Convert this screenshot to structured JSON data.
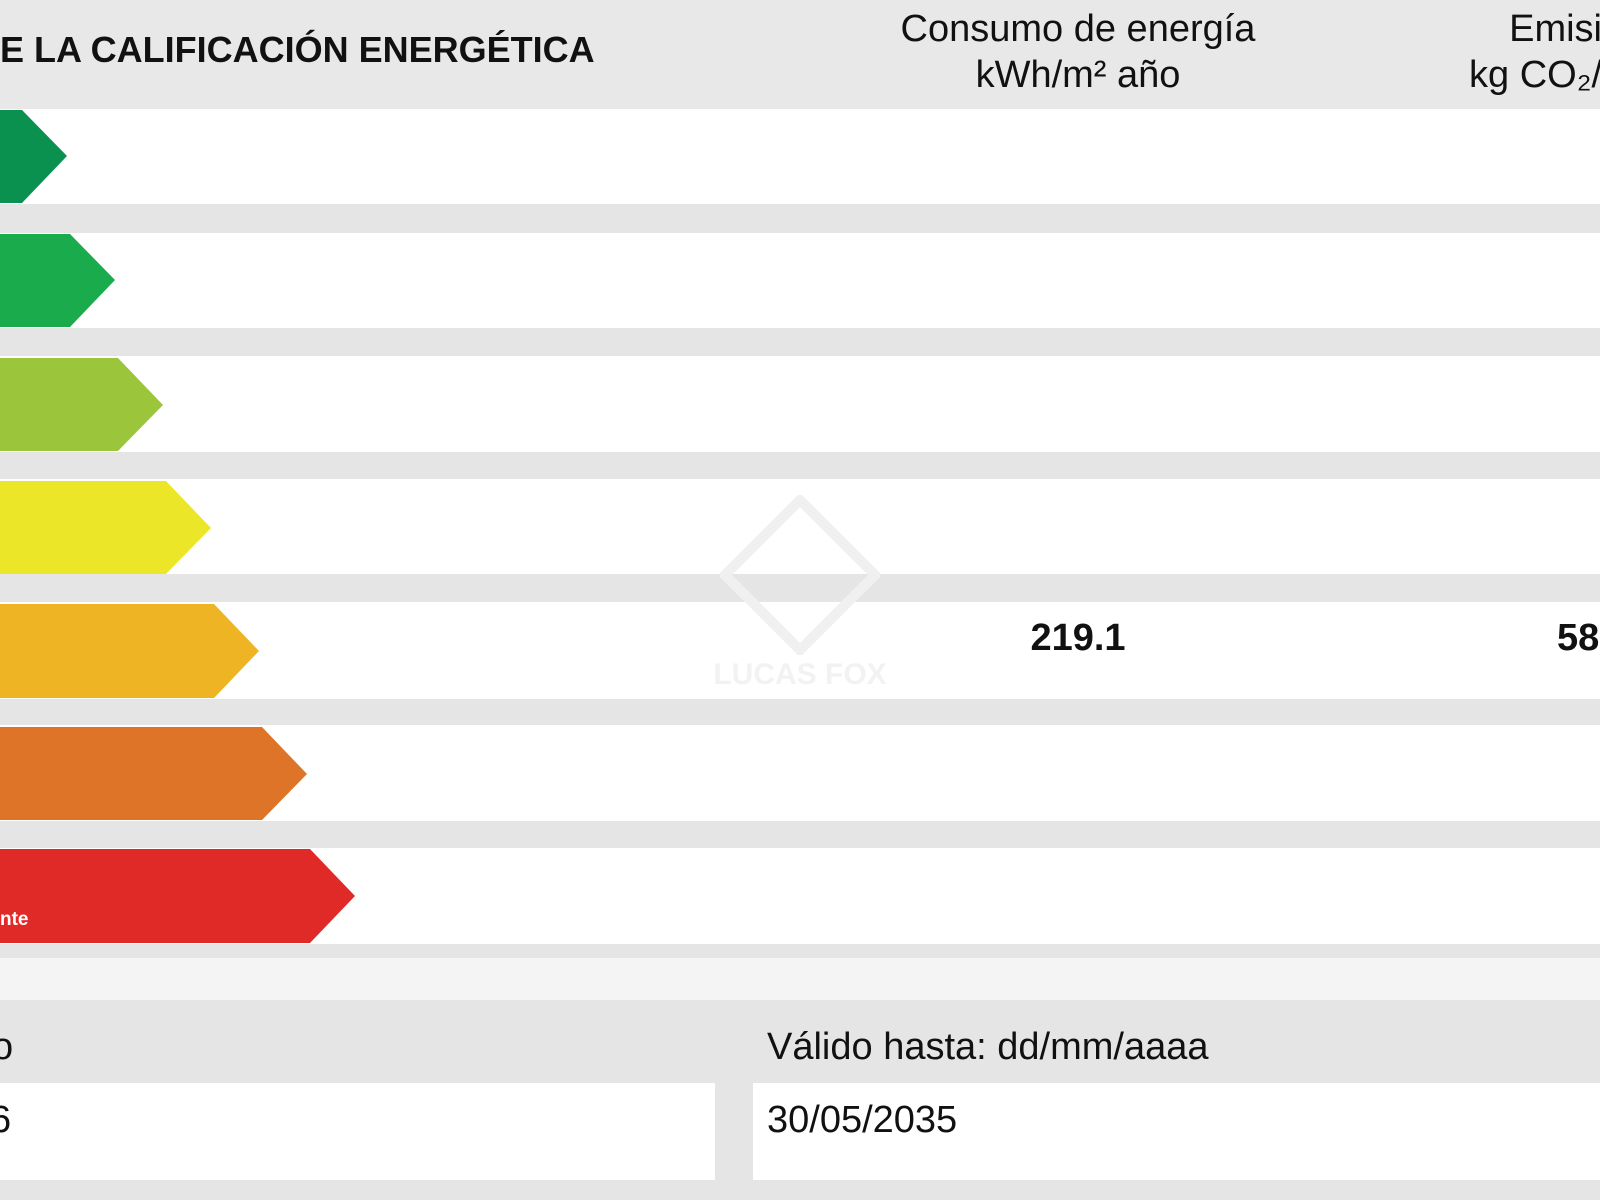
{
  "header": {
    "title": "E LA CALIFICACIÓN ENERGÉTICA",
    "energy_column": [
      "Consumo de energía",
      "kWh/m² año"
    ],
    "emissions_column": [
      "Emisi",
      "kg CO₂/"
    ]
  },
  "rating": {
    "label": "nte",
    "energy": 219.1,
    "emissions": 58
  },
  "watermark": "LUCAS FOX",
  "footer": {
    "left_label": "o",
    "left_value": "6",
    "valid_label": "Válido hasta: dd/mm/aaaa",
    "valid_value": "30/05/2035"
  }
}
